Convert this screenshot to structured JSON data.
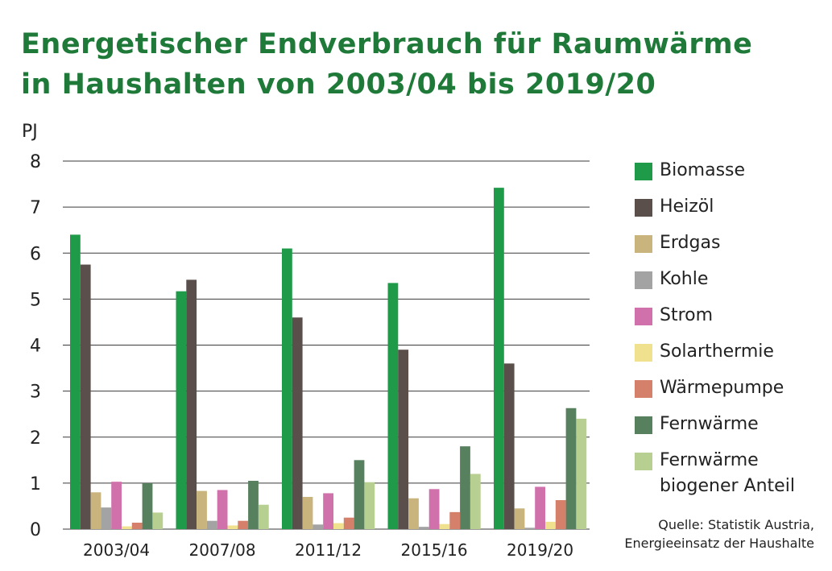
{
  "title_lines": [
    "Energetischer Endverbrauch für Raumwärme",
    "in Haushalten von 2003/04 bis 2019/20"
  ],
  "source_lines": [
    "Quelle: Statistik Austria,",
    "Energieeinsatz der Haushalte"
  ],
  "chart_data": {
    "type": "bar",
    "title": "Energetischer Endverbrauch für Raumwärme in Haushalten von 2003/04 bis 2019/20",
    "ylabel": "PJ",
    "xlabel": "",
    "ylim": [
      0,
      8
    ],
    "yticks": [
      "0",
      "1",
      "2",
      "3",
      "4",
      "5",
      "6",
      "7",
      "8"
    ],
    "grid": true,
    "legend_position": "right",
    "categories": [
      "2003/04",
      "2007/08",
      "2011/12",
      "2015/16",
      "2019/20"
    ],
    "series": [
      {
        "name": "Biomasse",
        "color": "#1f9a48",
        "values": [
          6.4,
          5.17,
          6.1,
          5.35,
          7.42
        ]
      },
      {
        "name": "Heizöl",
        "color": "#5a4f4a",
        "values": [
          5.75,
          5.42,
          4.6,
          3.9,
          3.6
        ]
      },
      {
        "name": "Erdgas",
        "color": "#c8b47c",
        "values": [
          0.8,
          0.83,
          0.7,
          0.67,
          0.45
        ]
      },
      {
        "name": "Kohle",
        "color": "#a3a3a3",
        "values": [
          0.47,
          0.18,
          0.1,
          0.05,
          0.03
        ]
      },
      {
        "name": "Strom",
        "color": "#d071ab",
        "values": [
          1.03,
          0.85,
          0.78,
          0.87,
          0.92
        ]
      },
      {
        "name": "Solarthermie",
        "color": "#efe18e",
        "values": [
          0.06,
          0.08,
          0.13,
          0.11,
          0.16
        ]
      },
      {
        "name": "Wärmepumpe",
        "color": "#d4806a",
        "values": [
          0.14,
          0.18,
          0.25,
          0.37,
          0.63
        ]
      },
      {
        "name": "Fernwärme",
        "color": "#57805f",
        "values": [
          1.0,
          1.05,
          1.5,
          1.8,
          2.63
        ]
      },
      {
        "name": "Fernwärme\nbiogener Anteil",
        "color": "#b7cf90",
        "values": [
          0.36,
          0.53,
          1.02,
          1.2,
          2.4
        ]
      }
    ]
  }
}
